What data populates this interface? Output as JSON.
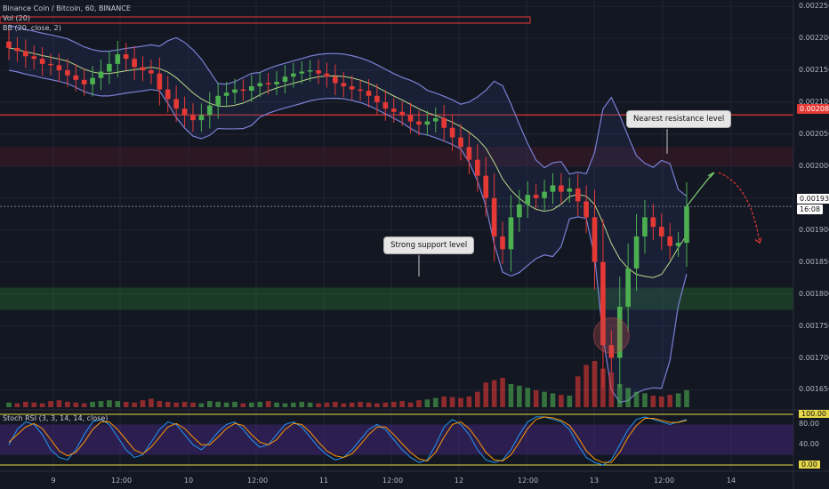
{
  "header": {
    "title": "Binance Coin / Bitcoin, 60, BINANCE",
    "vol_label": "Vol (20)",
    "bb_label": "BB (20, close, 2)",
    "stoch_label": "Stoch RSI (3, 3, 14, 14, close)"
  },
  "annotations": {
    "resistance": "Nearest resistance level",
    "support": "Strong support level"
  },
  "price_axis": {
    "ticks": [
      "0.0022500",
      "0.0022000",
      "0.0021500",
      "0.0021000",
      "0.0020500",
      "0.0020000",
      "0.0019500",
      "0.0019000",
      "0.0018500",
      "0.0018000",
      "0.0017500",
      "0.0017000",
      "0.0016500"
    ],
    "resistance_tag": "0.0020802",
    "last_price_tag": "0.0019370",
    "countdown_tag": "16:08"
  },
  "stoch_axis": {
    "ticks": [
      "100.00",
      "80.00",
      "40.00",
      "0.00"
    ]
  },
  "time_axis": {
    "labels": [
      "9",
      "12:00",
      "10",
      "12:00",
      "11",
      "12:00",
      "12",
      "12:00",
      "13",
      "12:00",
      "14"
    ]
  },
  "colors": {
    "background": "#131722",
    "up": "#4caf50",
    "down": "#e53935",
    "bb_band": "#7b7fd4",
    "bb_basis": "#b9d98a",
    "resistance_line": "#e53935",
    "support_zone": "#2e7d32",
    "stoch_k": "#2196f3",
    "stoch_d": "#ff9800"
  },
  "chart_data": {
    "type": "candlestick",
    "symbol": "Binance Coin / Bitcoin",
    "interval": "60",
    "exchange": "BINANCE",
    "ylim": [
      0.00162,
      0.00226
    ],
    "levels": {
      "resistance_line": 0.0020802,
      "resistance_zone": [
        0.002,
        0.00203
      ],
      "support_zone": [
        0.001775,
        0.00181
      ],
      "last_price": 0.001937
    },
    "close_path": [
      0.002185,
      0.00218,
      0.002172,
      0.002168,
      0.00216,
      0.002158,
      0.00215,
      0.002142,
      0.002135,
      0.002128,
      0.002138,
      0.002148,
      0.00216,
      0.002175,
      0.002168,
      0.002155,
      0.00215,
      0.002145,
      0.00212,
      0.002105,
      0.00209,
      0.00208,
      0.002072,
      0.00208,
      0.002095,
      0.00211,
      0.002115,
      0.00212,
      0.002118,
      0.002125,
      0.00213,
      0.002128,
      0.002132,
      0.00214,
      0.002145,
      0.002148,
      0.00215,
      0.002145,
      0.00214,
      0.00213,
      0.002125,
      0.00212,
      0.002118,
      0.00211,
      0.0021,
      0.00209,
      0.002085,
      0.00208,
      0.00207,
      0.002065,
      0.00207,
      0.002075,
      0.00206,
      0.002045,
      0.00203,
      0.00201,
      0.001985,
      0.00195,
      0.00189,
      0.00187,
      0.00192,
      0.00194,
      0.001955,
      0.00195,
      0.00196,
      0.00197,
      0.00196,
      0.001965,
      0.001945,
      0.00192,
      0.00185,
      0.00172,
      0.0017,
      0.00178,
      0.00184,
      0.00189,
      0.00192,
      0.001905,
      0.00189,
      0.001875,
      0.00188,
      0.001937
    ],
    "volume": [
      6,
      5,
      7,
      6,
      5,
      8,
      9,
      7,
      6,
      5,
      7,
      8,
      9,
      8,
      7,
      6,
      9,
      11,
      8,
      7,
      6,
      7,
      6,
      5,
      8,
      7,
      6,
      7,
      5,
      6,
      7,
      8,
      6,
      5,
      6,
      7,
      6,
      5,
      6,
      7,
      5,
      6,
      7,
      6,
      5,
      6,
      7,
      8,
      6,
      9,
      10,
      12,
      14,
      13,
      12,
      14,
      20,
      32,
      35,
      38,
      30,
      28,
      25,
      22,
      20,
      18,
      16,
      15,
      40,
      55,
      60,
      50,
      45,
      30,
      25,
      20,
      18,
      15,
      14,
      16,
      18,
      22
    ],
    "stoch_k": [
      40,
      70,
      85,
      80,
      60,
      30,
      15,
      10,
      30,
      60,
      85,
      90,
      80,
      55,
      30,
      15,
      20,
      45,
      70,
      85,
      80,
      60,
      40,
      30,
      45,
      65,
      80,
      85,
      70,
      50,
      35,
      40,
      60,
      80,
      85,
      75,
      55,
      35,
      20,
      10,
      15,
      30,
      50,
      70,
      80,
      70,
      50,
      30,
      15,
      5,
      10,
      40,
      75,
      90,
      80,
      60,
      30,
      10,
      5,
      10,
      30,
      60,
      85,
      95,
      95,
      90,
      85,
      70,
      40,
      15,
      5,
      0,
      10,
      40,
      70,
      90,
      95,
      90,
      85,
      80,
      85,
      90
    ],
    "stoch_d": [
      45,
      60,
      75,
      82,
      72,
      50,
      28,
      18,
      25,
      45,
      70,
      85,
      85,
      70,
      50,
      30,
      22,
      35,
      55,
      75,
      82,
      72,
      55,
      40,
      40,
      55,
      72,
      82,
      78,
      60,
      45,
      40,
      50,
      70,
      82,
      80,
      65,
      45,
      28,
      18,
      15,
      22,
      40,
      60,
      75,
      75,
      60,
      42,
      25,
      12,
      8,
      25,
      55,
      80,
      85,
      72,
      50,
      25,
      10,
      8,
      20,
      45,
      72,
      90,
      95,
      93,
      88,
      78,
      55,
      28,
      12,
      5,
      5,
      25,
      55,
      78,
      92,
      92,
      88,
      84,
      84,
      88
    ],
    "stoch_ylim": [
      0,
      100
    ],
    "x_labels": [
      "9",
      "12:00",
      "10",
      "12:00",
      "11",
      "12:00",
      "12",
      "12:00",
      "13",
      "12:00",
      "14"
    ]
  }
}
